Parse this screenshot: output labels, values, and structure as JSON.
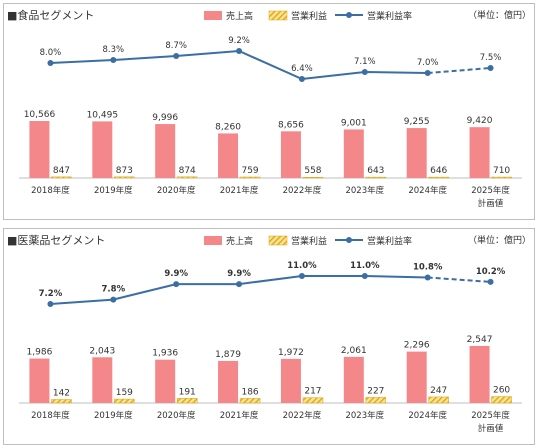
{
  "chart_data": [
    {
      "type": "bar",
      "title": "■食品セグメント",
      "unit": "（単位：億円）",
      "categories": [
        "2018年度",
        "2019年度",
        "2020年度",
        "2021年度",
        "2022年度",
        "2023年度",
        "2024年度",
        "2025年度"
      ],
      "category_note": "計画値",
      "legend": {
        "placement": "top-right",
        "sales": "売上高",
        "op": "営業利益",
        "margin": "営業利益率"
      },
      "series": [
        {
          "name": "売上高",
          "values": [
            10566,
            10495,
            9996,
            8260,
            8656,
            9001,
            9255,
            9420
          ],
          "labels": [
            "10,566",
            "10,495",
            "9,996",
            "8,260",
            "8,656",
            "9,001",
            "9,255",
            "9,420"
          ]
        },
        {
          "name": "営業利益",
          "values": [
            847,
            873,
            874,
            759,
            558,
            643,
            646,
            710
          ],
          "labels": [
            "847",
            "873",
            "874",
            "759",
            "558",
            "643",
            "646",
            "710"
          ]
        },
        {
          "name": "営業利益率",
          "values": [
            8.0,
            8.3,
            8.7,
            9.2,
            6.4,
            7.1,
            7.0,
            7.5
          ],
          "labels": [
            "8.0%",
            "8.3%",
            "8.7%",
            "9.2%",
            "6.4%",
            "7.1%",
            "7.0%",
            "7.5%"
          ]
        }
      ],
      "margin_dashed_last": true,
      "margin_label_bold": false,
      "colors": {
        "sales": "#f4878a",
        "op_fill": "#fbe38e",
        "op_stripe": "#d9a515",
        "line": "#3a6ea5"
      }
    },
    {
      "type": "bar",
      "title": "■医薬品セグメント",
      "unit": "（単位：億円）",
      "categories": [
        "2018年度",
        "2019年度",
        "2020年度",
        "2021年度",
        "2022年度",
        "2023年度",
        "2024年度",
        "2025年度"
      ],
      "category_note": "計画値",
      "legend": {
        "placement": "top-right",
        "sales": "売上高",
        "op": "営業利益",
        "margin": "営業利益率"
      },
      "series": [
        {
          "name": "売上高",
          "values": [
            1986,
            2043,
            1936,
            1879,
            1972,
            2061,
            2296,
            2547
          ],
          "labels": [
            "1,986",
            "2,043",
            "1,936",
            "1,879",
            "1,972",
            "2,061",
            "2,296",
            "2,547"
          ]
        },
        {
          "name": "営業利益",
          "values": [
            142,
            159,
            191,
            186,
            217,
            227,
            247,
            260
          ],
          "labels": [
            "142",
            "159",
            "191",
            "186",
            "217",
            "227",
            "247",
            "260"
          ]
        },
        {
          "name": "営業利益率",
          "values": [
            7.2,
            7.8,
            9.9,
            9.9,
            11.0,
            11.0,
            10.8,
            10.2
          ],
          "labels": [
            "7.2%",
            "7.8%",
            "9.9%",
            "9.9%",
            "11.0%",
            "11.0%",
            "10.8%",
            "10.2%"
          ]
        }
      ],
      "margin_dashed_last": true,
      "margin_label_bold": true,
      "colors": {
        "sales": "#f4878a",
        "op_fill": "#fbe38e",
        "op_stripe": "#d9a515",
        "line": "#3a6ea5"
      }
    }
  ]
}
